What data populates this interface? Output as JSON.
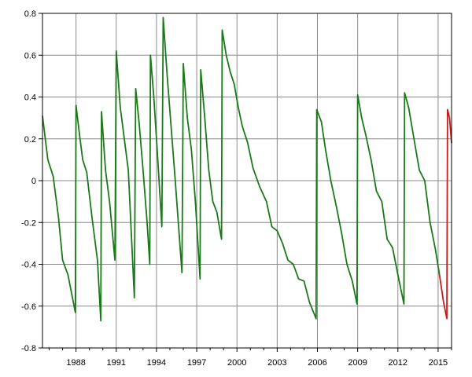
{
  "chart_data": {
    "type": "line",
    "title": "",
    "xlabel": "",
    "ylabel": "",
    "xlim": [
      1985.5,
      2016.0
    ],
    "ylim": [
      -0.8,
      0.8
    ],
    "x_ticks": [
      1988,
      1991,
      1994,
      1997,
      2000,
      2003,
      2006,
      2009,
      2012,
      2015
    ],
    "x_tick_labels": [
      "1988",
      "1991",
      "1994",
      "1997",
      "2000",
      "2003",
      "2006",
      "2009",
      "2012",
      "2015"
    ],
    "y_ticks": [
      -0.8,
      -0.6,
      -0.4,
      -0.2,
      0,
      0.2,
      0.4,
      0.6,
      0.8
    ],
    "y_tick_labels": [
      "-0.8",
      "-0.6",
      "-0.4",
      "-0.2",
      "0",
      "0.2",
      "0.4",
      "0.6",
      "0.8"
    ],
    "grid": true,
    "legend": "none",
    "series": [
      {
        "color": "#1a7a1a",
        "points": [
          [
            1985.5,
            0.31
          ],
          [
            1985.9,
            0.1
          ],
          [
            1986.3,
            0.02
          ],
          [
            1986.7,
            -0.18
          ],
          [
            1987.0,
            -0.38
          ],
          [
            1987.4,
            -0.45
          ],
          [
            1987.95,
            -0.63
          ],
          [
            1988.0,
            0.36
          ],
          [
            1988.3,
            0.2
          ],
          [
            1988.5,
            0.1
          ],
          [
            1988.8,
            0.04
          ],
          [
            1989.2,
            -0.18
          ],
          [
            1989.6,
            -0.38
          ],
          [
            1989.85,
            -0.67
          ],
          [
            1989.9,
            0.33
          ],
          [
            1990.2,
            0.05
          ],
          [
            1990.5,
            -0.1
          ],
          [
            1990.9,
            -0.38
          ],
          [
            1991.0,
            0.62
          ],
          [
            1991.3,
            0.35
          ],
          [
            1991.6,
            0.2
          ],
          [
            1991.9,
            0.05
          ],
          [
            1992.35,
            -0.56
          ],
          [
            1992.45,
            0.44
          ],
          [
            1992.7,
            0.28
          ],
          [
            1993.0,
            0.05
          ],
          [
            1993.3,
            -0.2
          ],
          [
            1993.5,
            -0.4
          ],
          [
            1993.55,
            0.6
          ],
          [
            1993.8,
            0.4
          ],
          [
            1994.05,
            0.15
          ],
          [
            1994.4,
            -0.22
          ],
          [
            1994.5,
            0.78
          ],
          [
            1994.8,
            0.5
          ],
          [
            1995.1,
            0.25
          ],
          [
            1995.4,
            0.0
          ],
          [
            1995.9,
            -0.44
          ],
          [
            1996.0,
            0.56
          ],
          [
            1996.3,
            0.3
          ],
          [
            1996.6,
            0.15
          ],
          [
            1996.9,
            -0.1
          ],
          [
            1997.25,
            -0.47
          ],
          [
            1997.3,
            0.53
          ],
          [
            1997.6,
            0.3
          ],
          [
            1997.9,
            0.05
          ],
          [
            1998.2,
            -0.1
          ],
          [
            1998.5,
            -0.15
          ],
          [
            1998.85,
            -0.28
          ],
          [
            1998.9,
            0.72
          ],
          [
            1999.2,
            0.6
          ],
          [
            1999.5,
            0.52
          ],
          [
            1999.8,
            0.46
          ],
          [
            2000.1,
            0.35
          ],
          [
            2000.4,
            0.26
          ],
          [
            2000.8,
            0.18
          ],
          [
            2001.2,
            0.06
          ],
          [
            2001.7,
            -0.03
          ],
          [
            2002.2,
            -0.1
          ],
          [
            2002.6,
            -0.22
          ],
          [
            2003.0,
            -0.24
          ],
          [
            2003.4,
            -0.3
          ],
          [
            2003.8,
            -0.38
          ],
          [
            2004.2,
            -0.4
          ],
          [
            2004.6,
            -0.47
          ],
          [
            2005.0,
            -0.48
          ],
          [
            2005.4,
            -0.58
          ],
          [
            2005.9,
            -0.66
          ],
          [
            2005.95,
            0.34
          ],
          [
            2006.3,
            0.28
          ],
          [
            2006.6,
            0.15
          ],
          [
            2007.0,
            0.0
          ],
          [
            2007.4,
            -0.12
          ],
          [
            2007.8,
            -0.25
          ],
          [
            2008.2,
            -0.4
          ],
          [
            2008.6,
            -0.48
          ],
          [
            2008.95,
            -0.59
          ],
          [
            2009.0,
            0.41
          ],
          [
            2009.3,
            0.3
          ],
          [
            2009.6,
            0.22
          ],
          [
            2010.0,
            0.1
          ],
          [
            2010.4,
            -0.05
          ],
          [
            2010.8,
            -0.1
          ],
          [
            2011.2,
            -0.28
          ],
          [
            2011.6,
            -0.32
          ],
          [
            2012.0,
            -0.45
          ],
          [
            2012.45,
            -0.59
          ],
          [
            2012.5,
            0.42
          ],
          [
            2012.8,
            0.35
          ],
          [
            2013.2,
            0.2
          ],
          [
            2013.6,
            0.05
          ],
          [
            2014.0,
            0.0
          ],
          [
            2014.4,
            -0.2
          ],
          [
            2014.8,
            -0.33
          ],
          [
            2015.1,
            -0.45
          ]
        ]
      },
      {
        "color": "#cc1a1a",
        "points": [
          [
            2015.1,
            -0.45
          ],
          [
            2015.4,
            -0.58
          ],
          [
            2015.65,
            -0.66
          ],
          [
            2015.7,
            0.34
          ],
          [
            2015.85,
            0.3
          ],
          [
            2016.0,
            0.18
          ]
        ]
      }
    ]
  }
}
